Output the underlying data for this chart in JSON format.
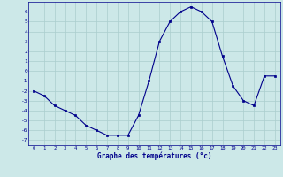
{
  "hours": [
    0,
    1,
    2,
    3,
    4,
    5,
    6,
    7,
    8,
    9,
    10,
    11,
    12,
    13,
    14,
    15,
    16,
    17,
    18,
    19,
    20,
    21,
    22,
    23
  ],
  "temps": [
    -2.0,
    -2.5,
    -3.5,
    -4.0,
    -4.5,
    -5.5,
    -6.0,
    -6.5,
    -6.5,
    -6.5,
    -4.5,
    -1.0,
    3.0,
    5.0,
    6.0,
    6.5,
    6.0,
    5.0,
    1.5,
    -1.5,
    -3.0,
    -3.5,
    -0.5,
    -0.5
  ],
  "line_color": "#00008B",
  "marker": "s",
  "marker_size": 2,
  "bg_color": "#cce8e8",
  "grid_color": "#aacece",
  "xlabel": "Graphe des températures (°c)",
  "xlabel_color": "#00008B",
  "tick_color": "#00008B",
  "ylim": [
    -7.5,
    7.0
  ],
  "yticks": [
    -7,
    -6,
    -5,
    -4,
    -3,
    -2,
    -1,
    0,
    1,
    2,
    3,
    4,
    5,
    6
  ],
  "xlim": [
    -0.5,
    23.5
  ]
}
